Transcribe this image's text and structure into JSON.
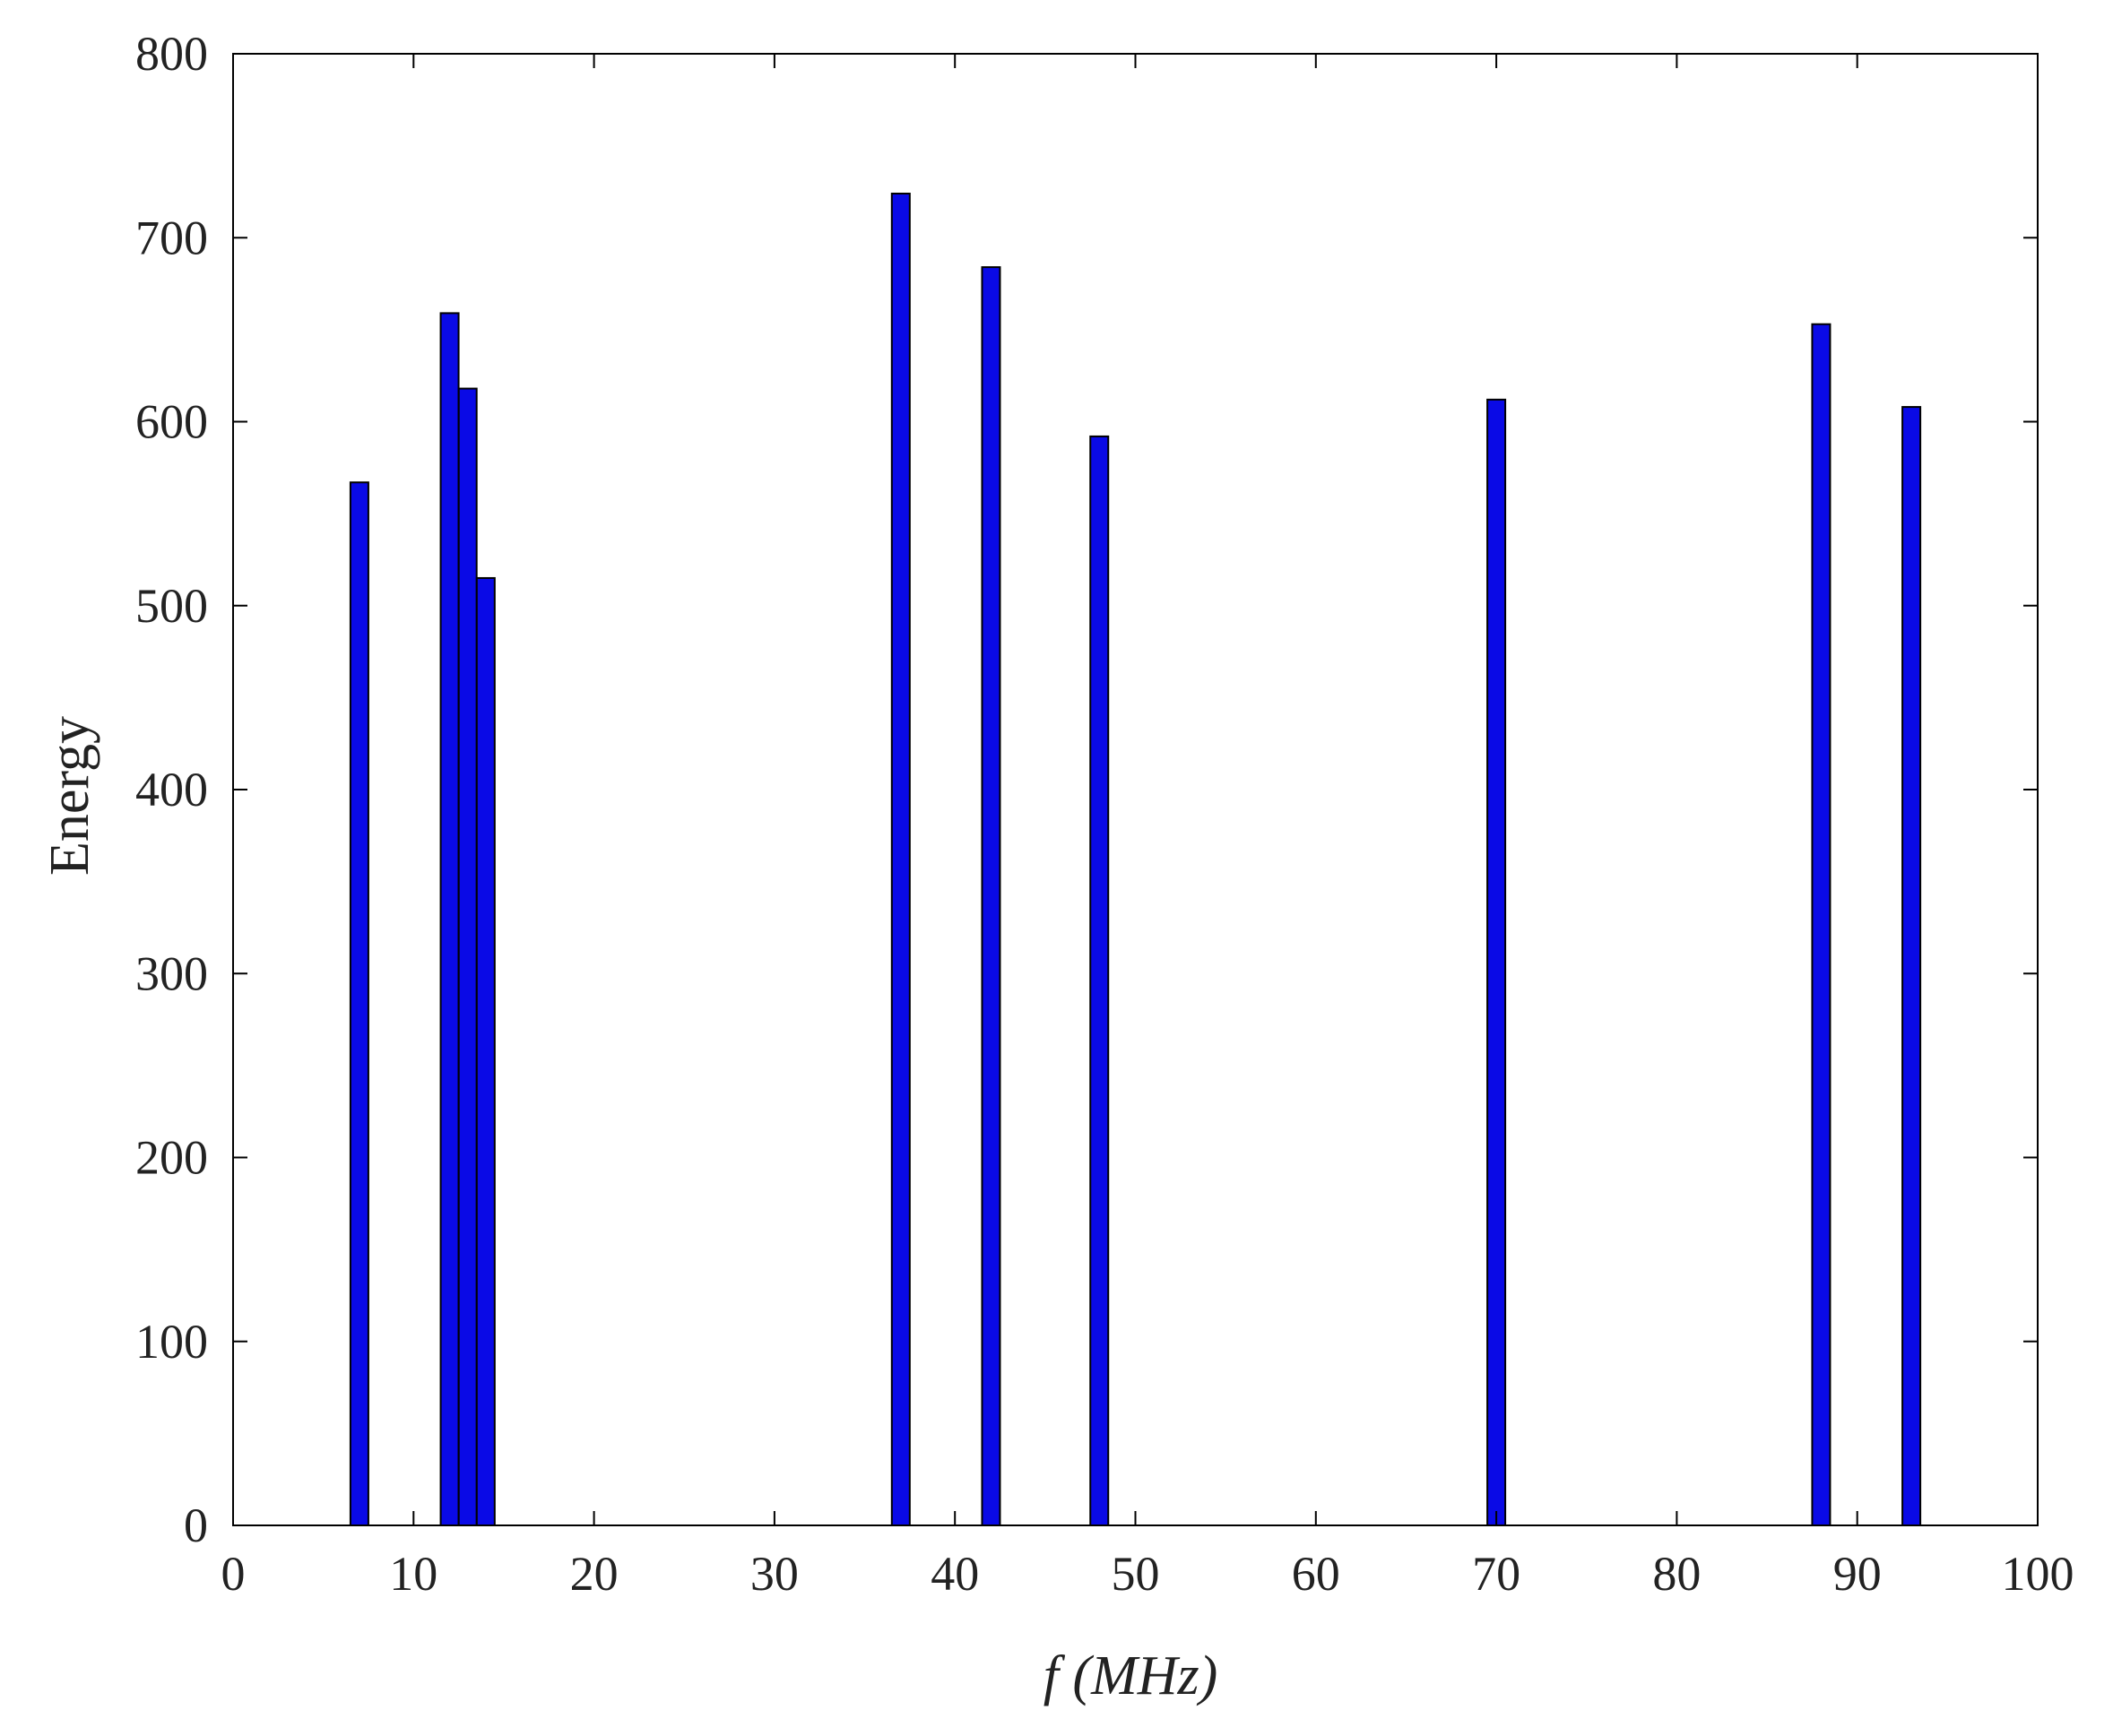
{
  "chart_data": {
    "type": "bar",
    "x": [
      7,
      12,
      13,
      14,
      37,
      42,
      48,
      70,
      88,
      93
    ],
    "values": [
      567,
      659,
      618,
      515,
      724,
      684,
      592,
      612,
      653,
      608
    ],
    "xlabel": "f (MHz)",
    "ylabel": "Energy",
    "xlim": [
      0,
      100
    ],
    "ylim": [
      0,
      800
    ],
    "xticks": [
      0,
      10,
      20,
      30,
      40,
      50,
      60,
      70,
      80,
      90,
      100
    ],
    "yticks": [
      0,
      100,
      200,
      300,
      400,
      500,
      600,
      700,
      800
    ],
    "grid": false,
    "bar_color": "#0a0ae6",
    "bar_edge_color": "#000000"
  }
}
